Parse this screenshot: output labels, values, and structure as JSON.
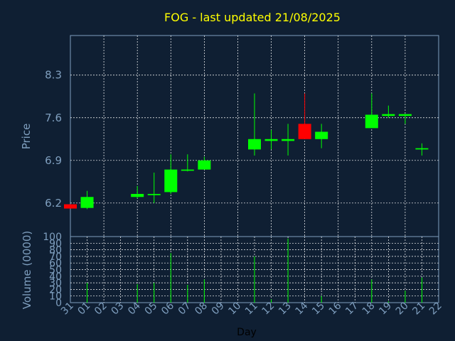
{
  "chart_data": [
    {
      "type": "candlestick",
      "title": "FOG - last updated 21/08/2025",
      "ylabel": "Price",
      "ylim": [
        5.65,
        8.95
      ],
      "yticks": [
        "6.2",
        "6.9",
        "7.6",
        "8.3"
      ],
      "x": [
        "31",
        "01",
        "02",
        "03",
        "04",
        "05",
        "06",
        "07",
        "08",
        "09",
        "10",
        "11",
        "12",
        "13",
        "14",
        "15",
        "16",
        "17",
        "18",
        "19",
        "20",
        "21",
        "22"
      ],
      "grid": true,
      "colors": {
        "up": "#00ff00",
        "down": "#ff0000",
        "grid": "#ffffff",
        "text": "#7f9fbf",
        "title": "#ffff00"
      },
      "candles": [
        {
          "day": "31",
          "open": 6.18,
          "high": 6.18,
          "low": 6.11,
          "close": 6.11
        },
        {
          "day": "01",
          "open": 6.12,
          "high": 6.4,
          "low": 6.1,
          "close": 6.3
        },
        {
          "day": "04",
          "open": 6.3,
          "high": 6.48,
          "low": 6.28,
          "close": 6.35
        },
        {
          "day": "05",
          "open": 6.33,
          "high": 6.7,
          "low": 6.2,
          "close": 6.35
        },
        {
          "day": "06",
          "open": 6.38,
          "high": 7.0,
          "low": 6.35,
          "close": 6.75
        },
        {
          "day": "07",
          "open": 6.73,
          "high": 7.0,
          "low": 6.72,
          "close": 6.75
        },
        {
          "day": "08",
          "open": 6.75,
          "high": 6.96,
          "low": 6.75,
          "close": 6.9
        },
        {
          "day": "11",
          "open": 7.08,
          "high": 8.0,
          "low": 6.98,
          "close": 7.25
        },
        {
          "day": "12",
          "open": 7.22,
          "high": 7.4,
          "low": 7.08,
          "close": 7.25
        },
        {
          "day": "13",
          "open": 7.22,
          "high": 7.5,
          "low": 6.98,
          "close": 7.25
        },
        {
          "day": "14",
          "open": 7.5,
          "high": 8.0,
          "low": 7.25,
          "close": 7.25
        },
        {
          "day": "15",
          "open": 7.25,
          "high": 7.5,
          "low": 7.1,
          "close": 7.37
        },
        {
          "day": "18",
          "open": 7.43,
          "high": 8.0,
          "low": 7.43,
          "close": 7.65
        },
        {
          "day": "19",
          "open": 7.63,
          "high": 7.8,
          "low": 7.6,
          "close": 7.66
        },
        {
          "day": "20",
          "open": 7.63,
          "high": 7.66,
          "low": 7.5,
          "close": 7.66
        },
        {
          "day": "21",
          "open": 7.08,
          "high": 7.18,
          "low": 6.98,
          "close": 7.1
        }
      ]
    },
    {
      "type": "bar",
      "ylabel": "Volume (0000)",
      "xlabel": "Day",
      "ylim": [
        0,
        100
      ],
      "yticks": [
        "0",
        "10",
        "20",
        "30",
        "40",
        "50",
        "60",
        "70",
        "80",
        "90",
        "100"
      ],
      "x": [
        "31",
        "01",
        "02",
        "03",
        "04",
        "05",
        "06",
        "07",
        "08",
        "09",
        "10",
        "11",
        "12",
        "13",
        "14",
        "15",
        "16",
        "17",
        "18",
        "19",
        "20",
        "21",
        "22"
      ],
      "color": "#00ff00",
      "bars": [
        {
          "day": "01",
          "value": 30
        },
        {
          "day": "04",
          "value": 28
        },
        {
          "day": "05",
          "value": 30
        },
        {
          "day": "06",
          "value": 75
        },
        {
          "day": "07",
          "value": 27
        },
        {
          "day": "08",
          "value": 35
        },
        {
          "day": "11",
          "value": 70
        },
        {
          "day": "12",
          "value": 5
        },
        {
          "day": "13",
          "value": 97
        },
        {
          "day": "15",
          "value": 10
        },
        {
          "day": "18",
          "value": 35
        },
        {
          "day": "19",
          "value": 2
        },
        {
          "day": "20",
          "value": 18
        },
        {
          "day": "21",
          "value": 38
        }
      ]
    }
  ]
}
